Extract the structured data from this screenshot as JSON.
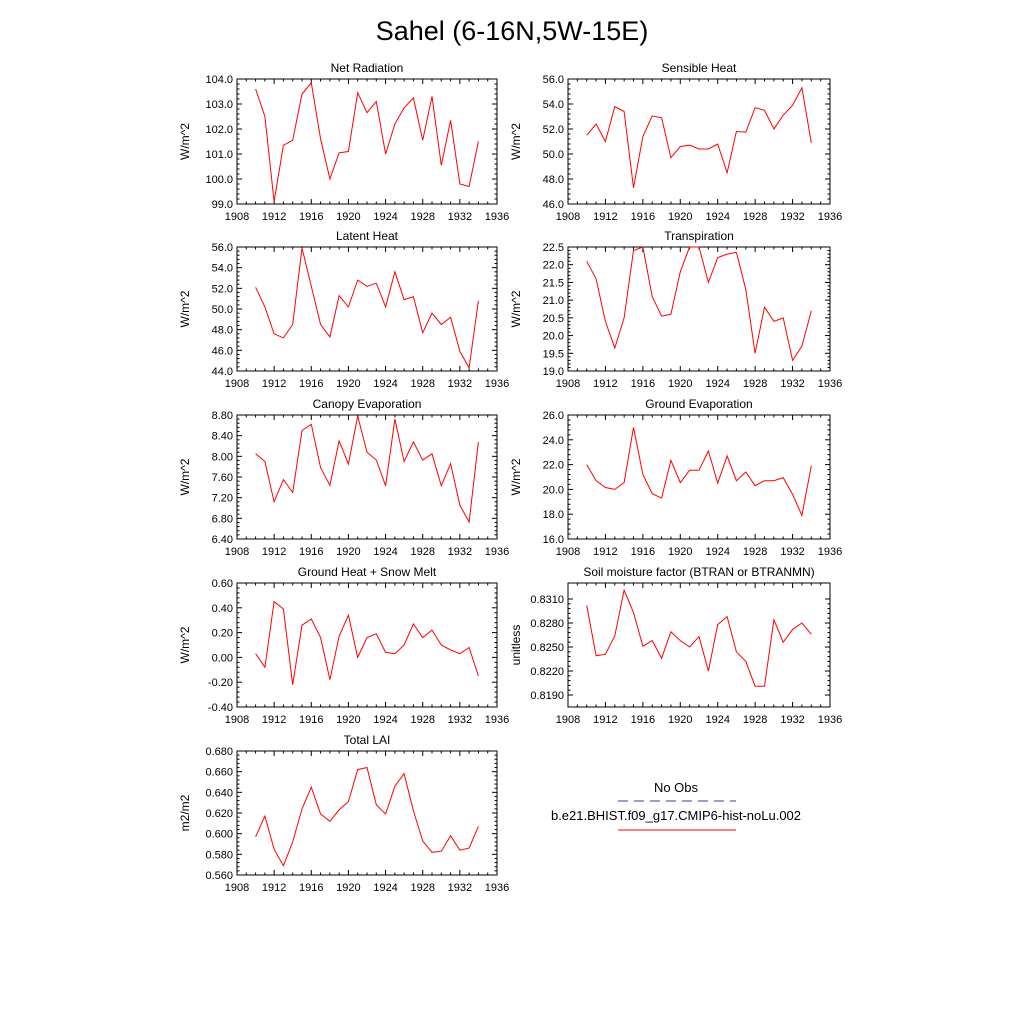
{
  "figure": {
    "title": "Sahel (6-16N,5W-15E)"
  },
  "legend": {
    "obs_label": "No Obs",
    "model_label": "b.e21.BHIST.f09_g17.CMIP6-hist-noLu.002",
    "obs_color": "#3a3a9a",
    "model_color": "#ff0000"
  },
  "chart_data": [
    {
      "type": "line",
      "title": "Net Radiation",
      "ylabel": "W/m^2",
      "xlabel": "",
      "xlim": [
        1908,
        1936
      ],
      "ylim": [
        99.0,
        104.0
      ],
      "xticks": [
        "1908",
        "1912",
        "1916",
        "1920",
        "1924",
        "1928",
        "1932",
        "1936"
      ],
      "yticks": [
        "99.0",
        "100.0",
        "101.0",
        "102.0",
        "103.0",
        "104.0"
      ],
      "x": [
        1910,
        1911,
        1912,
        1913,
        1914,
        1915,
        1916,
        1917,
        1918,
        1919,
        1920,
        1921,
        1922,
        1923,
        1924,
        1925,
        1926,
        1927,
        1928,
        1929,
        1930,
        1931,
        1932,
        1933,
        1934
      ],
      "series": [
        {
          "color": "#ff0000",
          "values": [
            103.6,
            102.5,
            99.1,
            101.35,
            101.55,
            103.4,
            103.85,
            101.6,
            100.0,
            101.05,
            101.1,
            103.45,
            102.65,
            103.1,
            101.0,
            102.2,
            102.85,
            103.25,
            101.55,
            103.3,
            100.55,
            102.35,
            99.8,
            99.7,
            101.5
          ]
        }
      ]
    },
    {
      "type": "line",
      "title": "Sensible Heat",
      "ylabel": "W/m^2",
      "xlabel": "",
      "xlim": [
        1908,
        1936
      ],
      "ylim": [
        46.0,
        56.0
      ],
      "xticks": [
        "1908",
        "1912",
        "1916",
        "1920",
        "1924",
        "1928",
        "1932",
        "1936"
      ],
      "yticks": [
        "46.0",
        "48.0",
        "50.0",
        "52.0",
        "54.0",
        "56.0"
      ],
      "x": [
        1910,
        1911,
        1912,
        1913,
        1914,
        1915,
        1916,
        1917,
        1918,
        1919,
        1920,
        1921,
        1922,
        1923,
        1924,
        1925,
        1926,
        1927,
        1928,
        1929,
        1930,
        1931,
        1932,
        1933,
        1934
      ],
      "series": [
        {
          "color": "#ff0000",
          "values": [
            51.5,
            52.4,
            51.0,
            53.8,
            53.4,
            47.3,
            51.4,
            53.05,
            52.9,
            49.7,
            50.6,
            50.7,
            50.4,
            50.4,
            50.8,
            48.5,
            51.8,
            51.75,
            53.7,
            53.5,
            52.0,
            53.1,
            53.9,
            55.3,
            50.9
          ]
        }
      ]
    },
    {
      "type": "line",
      "title": "Latent Heat",
      "ylabel": "W/m^2",
      "xlabel": "",
      "xlim": [
        1908,
        1936
      ],
      "ylim": [
        44.0,
        56.0
      ],
      "xticks": [
        "1908",
        "1912",
        "1916",
        "1920",
        "1924",
        "1928",
        "1932",
        "1936"
      ],
      "yticks": [
        "44.0",
        "46.0",
        "48.0",
        "50.0",
        "52.0",
        "54.0",
        "56.0"
      ],
      "x": [
        1910,
        1911,
        1912,
        1913,
        1914,
        1915,
        1916,
        1917,
        1918,
        1919,
        1920,
        1921,
        1922,
        1923,
        1924,
        1925,
        1926,
        1927,
        1928,
        1929,
        1930,
        1931,
        1932,
        1933,
        1934
      ],
      "series": [
        {
          "color": "#ff0000",
          "values": [
            52.1,
            50.2,
            47.6,
            47.2,
            48.5,
            55.9,
            52.2,
            48.5,
            47.3,
            51.3,
            50.2,
            52.8,
            52.2,
            52.5,
            50.2,
            53.6,
            50.9,
            51.2,
            47.7,
            49.6,
            48.5,
            49.2,
            45.9,
            44.3,
            50.8
          ]
        }
      ]
    },
    {
      "type": "line",
      "title": "Transpiration",
      "ylabel": "W/m^2",
      "xlabel": "",
      "xlim": [
        1908,
        1936
      ],
      "ylim": [
        19.0,
        22.5
      ],
      "xticks": [
        "1908",
        "1912",
        "1916",
        "1920",
        "1924",
        "1928",
        "1932",
        "1936"
      ],
      "yticks": [
        "19.0",
        "19.5",
        "20.0",
        "20.5",
        "21.0",
        "21.5",
        "22.0",
        "22.5"
      ],
      "x": [
        1910,
        1911,
        1912,
        1913,
        1914,
        1915,
        1916,
        1917,
        1918,
        1919,
        1920,
        1921,
        1922,
        1923,
        1924,
        1925,
        1926,
        1927,
        1928,
        1929,
        1930,
        1931,
        1932,
        1933,
        1934
      ],
      "series": [
        {
          "color": "#ff0000",
          "values": [
            22.1,
            21.6,
            20.4,
            19.65,
            20.5,
            22.4,
            22.5,
            21.1,
            20.55,
            20.6,
            21.8,
            22.5,
            22.5,
            21.5,
            22.2,
            22.3,
            22.35,
            21.3,
            19.5,
            20.8,
            20.4,
            20.5,
            19.3,
            19.7,
            20.7
          ]
        }
      ]
    },
    {
      "type": "line",
      "title": "Canopy Evaporation",
      "ylabel": "W/m^2",
      "xlabel": "",
      "xlim": [
        1908,
        1936
      ],
      "ylim": [
        6.4,
        8.8
      ],
      "xticks": [
        "1908",
        "1912",
        "1916",
        "1920",
        "1924",
        "1928",
        "1932",
        "1936"
      ],
      "yticks": [
        "6.40",
        "6.80",
        "7.20",
        "7.60",
        "8.00",
        "8.40",
        "8.80"
      ],
      "x": [
        1910,
        1911,
        1912,
        1913,
        1914,
        1915,
        1916,
        1917,
        1918,
        1919,
        1920,
        1921,
        1922,
        1923,
        1924,
        1925,
        1926,
        1927,
        1928,
        1929,
        1930,
        1931,
        1932,
        1933,
        1934
      ],
      "series": [
        {
          "color": "#ff0000",
          "values": [
            8.05,
            7.9,
            7.12,
            7.55,
            7.3,
            8.5,
            8.62,
            7.78,
            7.44,
            8.3,
            7.85,
            8.78,
            8.08,
            7.93,
            7.43,
            8.72,
            7.9,
            8.28,
            7.93,
            8.05,
            7.43,
            7.86,
            7.05,
            6.73,
            8.28
          ]
        }
      ]
    },
    {
      "type": "line",
      "title": "Ground Evaporation",
      "ylabel": "W/m^2",
      "xlabel": "",
      "xlim": [
        1908,
        1936
      ],
      "ylim": [
        16.0,
        26.0
      ],
      "xticks": [
        "1908",
        "1912",
        "1916",
        "1920",
        "1924",
        "1928",
        "1932",
        "1936"
      ],
      "yticks": [
        "16.0",
        "18.0",
        "20.0",
        "22.0",
        "24.0",
        "26.0"
      ],
      "x": [
        1910,
        1911,
        1912,
        1913,
        1914,
        1915,
        1916,
        1917,
        1918,
        1919,
        1920,
        1921,
        1922,
        1923,
        1924,
        1925,
        1926,
        1927,
        1928,
        1929,
        1930,
        1931,
        1932,
        1933,
        1934
      ],
      "series": [
        {
          "color": "#ff0000",
          "values": [
            22.0,
            20.7,
            20.15,
            20.0,
            20.55,
            25.0,
            21.2,
            19.65,
            19.3,
            22.35,
            20.55,
            21.55,
            21.55,
            23.1,
            20.5,
            22.7,
            20.7,
            21.4,
            20.3,
            20.7,
            20.7,
            20.95,
            19.6,
            17.9,
            21.9
          ]
        }
      ]
    },
    {
      "type": "line",
      "title": "Ground Heat + Snow Melt",
      "ylabel": "W/m^2",
      "xlabel": "",
      "xlim": [
        1908,
        1936
      ],
      "ylim": [
        -0.4,
        0.6
      ],
      "xticks": [
        "1908",
        "1912",
        "1916",
        "1920",
        "1924",
        "1928",
        "1932",
        "1936"
      ],
      "yticks": [
        "-0.40",
        "-0.20",
        "0.00",
        "0.20",
        "0.40",
        "0.60"
      ],
      "x": [
        1910,
        1911,
        1912,
        1913,
        1914,
        1915,
        1916,
        1917,
        1918,
        1919,
        1920,
        1921,
        1922,
        1923,
        1924,
        1925,
        1926,
        1927,
        1928,
        1929,
        1930,
        1931,
        1932,
        1933,
        1934
      ],
      "series": [
        {
          "color": "#ff0000",
          "values": [
            0.03,
            -0.08,
            0.45,
            0.39,
            -0.22,
            0.26,
            0.31,
            0.16,
            -0.18,
            0.17,
            0.34,
            0.0,
            0.16,
            0.19,
            0.04,
            0.03,
            0.1,
            0.27,
            0.16,
            0.22,
            0.1,
            0.06,
            0.03,
            0.08,
            -0.15
          ]
        }
      ]
    },
    {
      "type": "line",
      "title": "Soil moisture factor (BTRAN or BTRANMN)",
      "ylabel": "unitless",
      "xlabel": "",
      "xlim": [
        1908,
        1936
      ],
      "ylim": [
        0.8175,
        0.833
      ],
      "xticks": [
        "1908",
        "1912",
        "1916",
        "1920",
        "1924",
        "1928",
        "1932",
        "1936"
      ],
      "yticks": [
        "0.8190",
        "0.8220",
        "0.8250",
        "0.8280",
        "0.8310"
      ],
      "yticks_values": [
        0.819,
        0.822,
        0.825,
        0.828,
        0.831
      ],
      "x": [
        1910,
        1911,
        1912,
        1913,
        1914,
        1915,
        1916,
        1917,
        1918,
        1919,
        1920,
        1921,
        1922,
        1923,
        1924,
        1925,
        1926,
        1927,
        1928,
        1929,
        1930,
        1931,
        1932,
        1933,
        1934
      ],
      "series": [
        {
          "color": "#ff0000",
          "values": [
            0.8302,
            0.8239,
            0.8241,
            0.8264,
            0.8321,
            0.8293,
            0.8251,
            0.8258,
            0.8236,
            0.8269,
            0.8258,
            0.825,
            0.8263,
            0.822,
            0.8278,
            0.8288,
            0.8244,
            0.8232,
            0.8201,
            0.8201,
            0.8284,
            0.8256,
            0.8272,
            0.828,
            0.8266
          ]
        }
      ]
    },
    {
      "type": "line",
      "title": "Total LAI",
      "ylabel": "m2/m2",
      "xlabel": "",
      "xlim": [
        1908,
        1936
      ],
      "ylim": [
        0.56,
        0.68
      ],
      "xticks": [
        "1908",
        "1912",
        "1916",
        "1920",
        "1924",
        "1928",
        "1932",
        "1936"
      ],
      "yticks": [
        "0.560",
        "0.580",
        "0.600",
        "0.620",
        "0.640",
        "0.660",
        "0.680"
      ],
      "x": [
        1910,
        1911,
        1912,
        1913,
        1914,
        1915,
        1916,
        1917,
        1918,
        1919,
        1920,
        1921,
        1922,
        1923,
        1924,
        1925,
        1926,
        1927,
        1928,
        1929,
        1930,
        1931,
        1932,
        1933,
        1934
      ],
      "series": [
        {
          "color": "#ff0000",
          "values": [
            0.597,
            0.617,
            0.585,
            0.569,
            0.592,
            0.624,
            0.645,
            0.619,
            0.612,
            0.623,
            0.631,
            0.662,
            0.664,
            0.628,
            0.619,
            0.646,
            0.658,
            0.622,
            0.593,
            0.582,
            0.583,
            0.598,
            0.584,
            0.586,
            0.607
          ]
        }
      ]
    }
  ]
}
